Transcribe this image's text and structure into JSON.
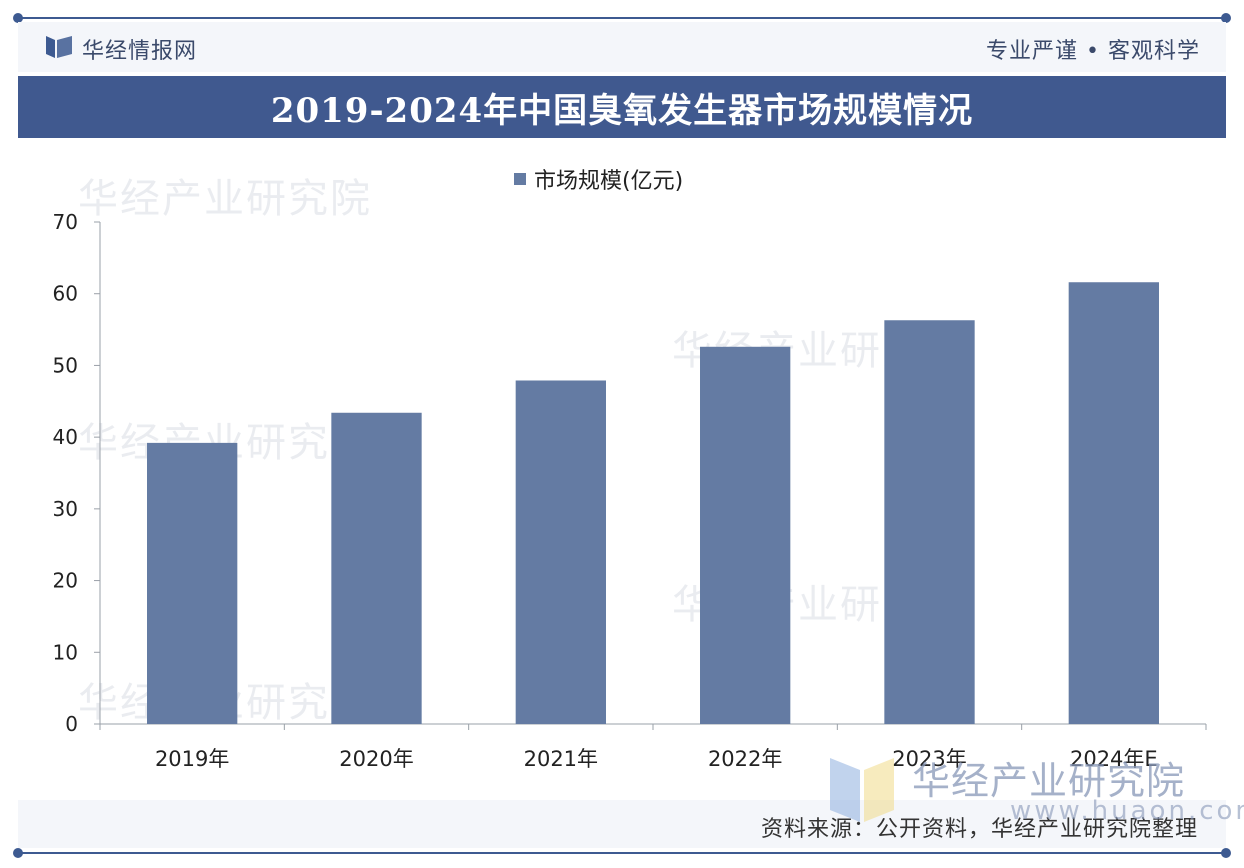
{
  "header": {
    "brand": "华经情报网",
    "slogan": "专业严谨 • 客观科学"
  },
  "colors": {
    "accent": "#40598f",
    "bar": "#647ba3",
    "header_bg": "#f4f6fa"
  },
  "chart_data": {
    "type": "bar",
    "title": "2019-2024年中国臭氧发生器市场规模情况",
    "categories": [
      "2019年",
      "2020年",
      "2021年",
      "2022年",
      "2023年",
      "2024年E"
    ],
    "series": [
      {
        "name": "市场规模(亿元)",
        "values": [
          39.2,
          43.4,
          47.9,
          52.6,
          56.3,
          61.6
        ]
      }
    ],
    "ylim": [
      0,
      70
    ],
    "yticks": [
      0,
      10,
      20,
      30,
      40,
      50,
      60,
      70
    ],
    "ytick_labels": [
      "0",
      "10",
      "20",
      "30",
      "40",
      "50",
      "60",
      "70"
    ],
    "xlabel": "",
    "ylabel": "",
    "grid": false,
    "legend": "top-center"
  },
  "footer": {
    "source": "资料来源：公开资料，华经产业研究院整理"
  },
  "watermark": {
    "brand": "华经产业研究院",
    "url": "www.huaon.com",
    "repeat_text": "华经产业研究院"
  }
}
